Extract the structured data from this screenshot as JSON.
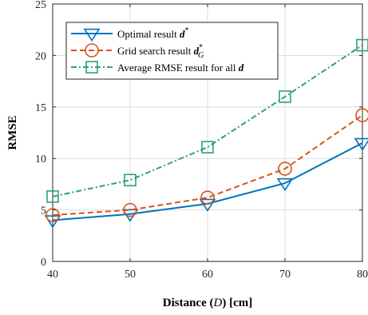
{
  "chart_data": {
    "type": "line",
    "xlabel": {
      "prefix": "Distance (",
      "var": "D",
      "suffix": ") [cm]"
    },
    "ylabel": "RMSE",
    "xlim": [
      40,
      80
    ],
    "ylim": [
      0,
      25
    ],
    "xticks": [
      40,
      50,
      60,
      70,
      80
    ],
    "yticks": [
      0,
      5,
      10,
      15,
      20,
      25
    ],
    "grid": true,
    "legend_position": "top-left",
    "x": [
      40,
      50,
      60,
      70,
      80
    ],
    "series": [
      {
        "name": {
          "text": "Optimal result ",
          "sym": "d",
          "sup": "*",
          "sub": ""
        },
        "values": [
          4.0,
          4.6,
          5.6,
          7.6,
          11.5
        ],
        "color": "#0072BD",
        "dash": "solid",
        "marker": "triangle-down"
      },
      {
        "name": {
          "text": "Grid search result ",
          "sym": "d",
          "sup": "*",
          "sub": "G"
        },
        "values": [
          4.5,
          5.0,
          6.2,
          9.0,
          14.2
        ],
        "color": "#D95319",
        "dash": "dashed",
        "marker": "circle"
      },
      {
        "name": {
          "text": "Average RMSE result for all ",
          "sym": "d",
          "sup": "",
          "sub": ""
        },
        "values": [
          6.3,
          7.9,
          11.1,
          16.0,
          21.0
        ],
        "color": "#2E9E85",
        "dash": "dashdot",
        "marker": "square"
      }
    ]
  }
}
